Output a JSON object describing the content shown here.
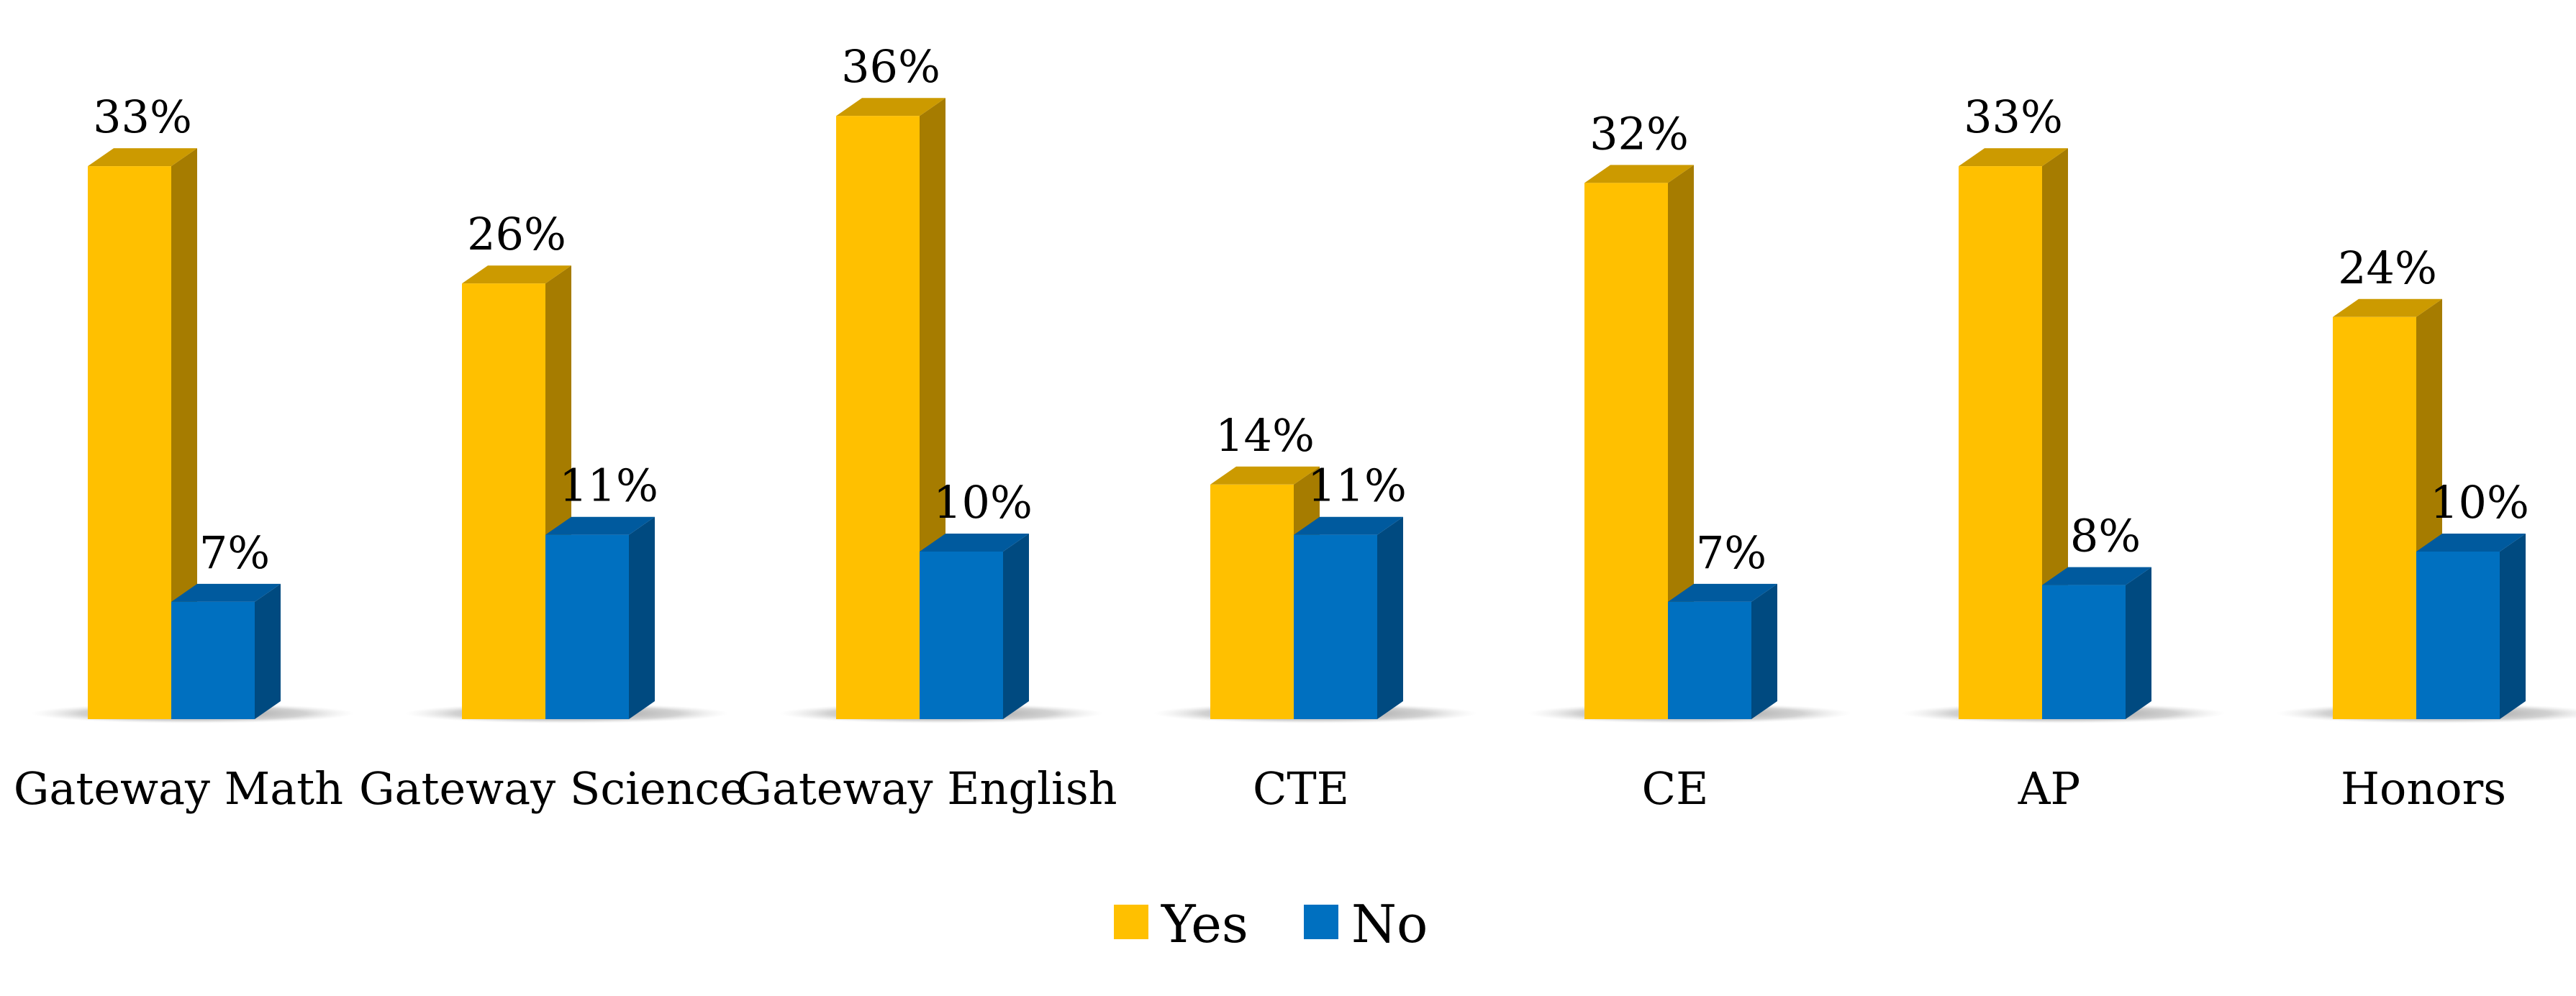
{
  "chart_data": {
    "type": "bar",
    "categories": [
      "Gateway Math",
      "Gateway Science",
      "Gateway English",
      "CTE",
      "CE",
      "AP",
      "Honors"
    ],
    "series": [
      {
        "name": "Yes",
        "values": [
          33,
          26,
          36,
          14,
          32,
          33,
          24
        ],
        "labels": [
          "33%",
          "26%",
          "36%",
          "14%",
          "32%",
          "33%",
          "24%"
        ],
        "color": "#FFC000",
        "side_color": "#A67C00",
        "top_color": "#CC9A00"
      },
      {
        "name": "No",
        "values": [
          7,
          11,
          10,
          11,
          7,
          8,
          10
        ],
        "labels": [
          "7%",
          "11%",
          "10%",
          "11%",
          "7%",
          "8%",
          "10%"
        ],
        "color": "#0070C0",
        "side_color": "#004A80",
        "top_color": "#005A9E"
      }
    ],
    "title": "",
    "xlabel": "",
    "ylabel": "",
    "ylim": [
      0,
      40
    ],
    "grid": false,
    "legend_position": "bottom",
    "style": "3d-column"
  }
}
